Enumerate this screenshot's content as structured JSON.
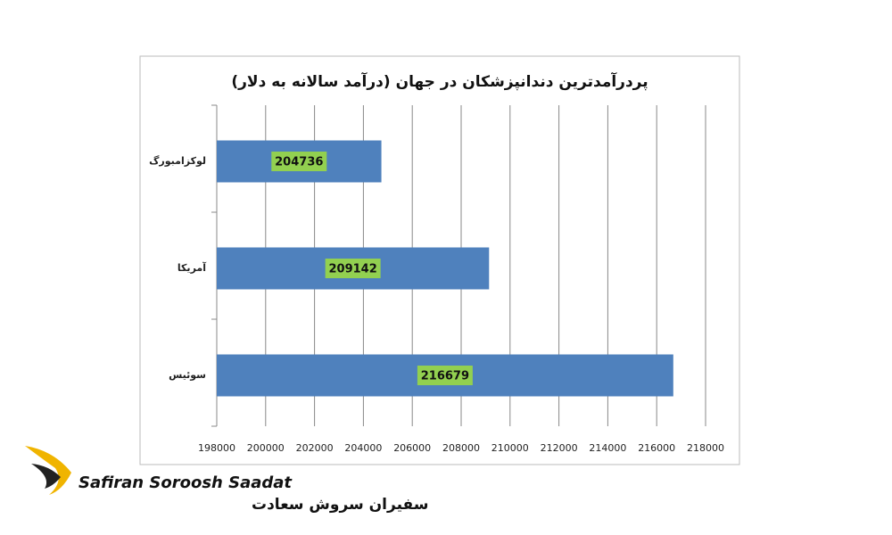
{
  "chart_data": {
    "type": "bar",
    "orientation": "horizontal",
    "title": "پردرآمدترین دندانپزشکان در جهان (درآمد سالانه به دلار)",
    "categories": [
      "لوکزامبورگ",
      "آمریکا",
      "سوئیس"
    ],
    "values": [
      204736,
      209142,
      216679
    ],
    "color": "#4f81bd",
    "label_box_color": "#92d050",
    "xlim": [
      198000,
      218000
    ],
    "xticks": [
      198000,
      200000,
      202000,
      204000,
      206000,
      208000,
      210000,
      212000,
      214000,
      216000,
      218000
    ],
    "grid": true
  },
  "logo": {
    "latin": "Safiran Soroosh Saadat",
    "persian": "سفیران سروش سعادت"
  }
}
